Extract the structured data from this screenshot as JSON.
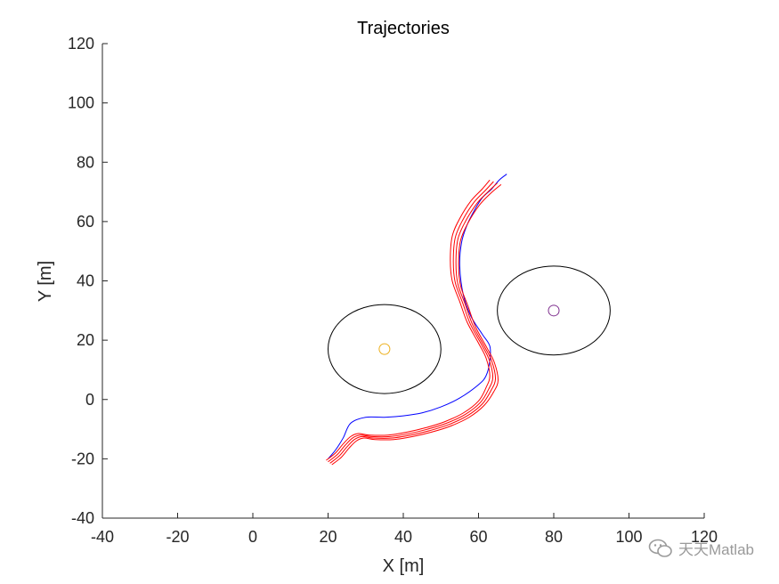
{
  "chart_data": {
    "type": "line",
    "title": "Trajectories",
    "xlabel": "X [m]",
    "ylabel": "Y [m]",
    "xlim": [
      -40,
      120
    ],
    "ylim": [
      -40,
      120
    ],
    "xticks": [
      -40,
      -20,
      0,
      20,
      40,
      60,
      80,
      100,
      120
    ],
    "yticks": [
      -40,
      -20,
      0,
      20,
      40,
      60,
      80,
      100,
      120
    ],
    "grid": false,
    "colors": {
      "reference": "#0000ff",
      "agents": "#ff0000",
      "obstacle_boundary": "#000000",
      "obstacle1_center": "#edb120",
      "obstacle2_center": "#7e2f8e"
    },
    "obstacles": [
      {
        "cx": 35,
        "cy": 17,
        "r": 15
      },
      {
        "cx": 80,
        "cy": 30,
        "r": 15
      }
    ],
    "series": [
      {
        "style": "reference",
        "x": [
          20,
          22,
          24,
          26,
          30,
          35,
          40,
          45,
          50,
          55,
          60,
          62,
          63,
          63,
          61,
          58,
          56,
          55,
          55.5,
          57,
          59,
          61,
          63.5,
          65.5,
          67.5
        ],
        "y": [
          -20,
          -17,
          -13,
          -8,
          -6,
          -6,
          -5.5,
          -4.5,
          -2.5,
          0.5,
          5,
          8,
          13,
          18,
          22,
          28,
          35,
          45,
          53,
          59,
          64,
          68,
          71,
          74,
          76
        ]
      },
      {
        "style": "agent",
        "x": [
          19.5,
          22,
          24,
          26,
          28,
          31,
          36,
          41,
          46,
          51,
          56,
          60,
          62,
          63,
          62,
          60,
          57,
          55,
          53,
          52.5,
          53,
          55,
          58,
          61,
          63
        ],
        "y": [
          -20.5,
          -18,
          -15,
          -12.5,
          -11.5,
          -12,
          -12,
          -11,
          -9.5,
          -7.5,
          -4.5,
          -0.5,
          4,
          8,
          14,
          19,
          26,
          33,
          40,
          47,
          55,
          61,
          67,
          71,
          74
        ]
      },
      {
        "style": "agent",
        "x": [
          20,
          22.5,
          24.5,
          26.5,
          28.5,
          31.5,
          36.5,
          41.5,
          46.5,
          51.5,
          56.5,
          60.5,
          62.7,
          63.8,
          62.8,
          60.8,
          57.8,
          55.8,
          53.8,
          53.3,
          53.8,
          55.8,
          58.8,
          61.8,
          64
        ],
        "y": [
          -21,
          -18.5,
          -15.5,
          -13,
          -12,
          -12.5,
          -12.5,
          -11.5,
          -10,
          -8,
          -5,
          -1,
          3.5,
          7.5,
          13.5,
          18.5,
          25.5,
          32.5,
          39.5,
          46.5,
          54.5,
          60.5,
          66.5,
          70.5,
          73.5
        ]
      },
      {
        "style": "agent",
        "x": [
          20.5,
          23,
          25,
          27,
          29,
          32,
          37,
          42,
          47,
          52,
          57,
          61,
          63.3,
          64.5,
          63.5,
          61.5,
          58.5,
          56.5,
          54.5,
          54,
          54.5,
          56.5,
          59.5,
          62.5,
          65
        ],
        "y": [
          -21.5,
          -19,
          -16,
          -13.5,
          -12.5,
          -13,
          -13,
          -12,
          -10.5,
          -8.5,
          -5.5,
          -1.5,
          3,
          7,
          13,
          18,
          25,
          32,
          39,
          46,
          54,
          60,
          66,
          70,
          73
        ]
      },
      {
        "style": "agent",
        "x": [
          21,
          23.5,
          25.5,
          27.5,
          29.5,
          32.5,
          37.5,
          42.5,
          47.5,
          52.5,
          57.5,
          61.5,
          64,
          65.2,
          64.2,
          62.2,
          59.2,
          57.2,
          55.2,
          54.7,
          55.2,
          57.2,
          60.2,
          63.2,
          66
        ],
        "y": [
          -22,
          -19.5,
          -16.5,
          -14,
          -13,
          -13.5,
          -13.5,
          -12.5,
          -11,
          -9,
          -6,
          -2,
          2.5,
          6.5,
          12.5,
          17.5,
          24.5,
          31.5,
          38.5,
          45.5,
          53.5,
          59.5,
          65.5,
          69.5,
          72.5
        ]
      }
    ]
  },
  "watermark": {
    "text": "天天Matlab",
    "icon": "wechat-icon"
  }
}
